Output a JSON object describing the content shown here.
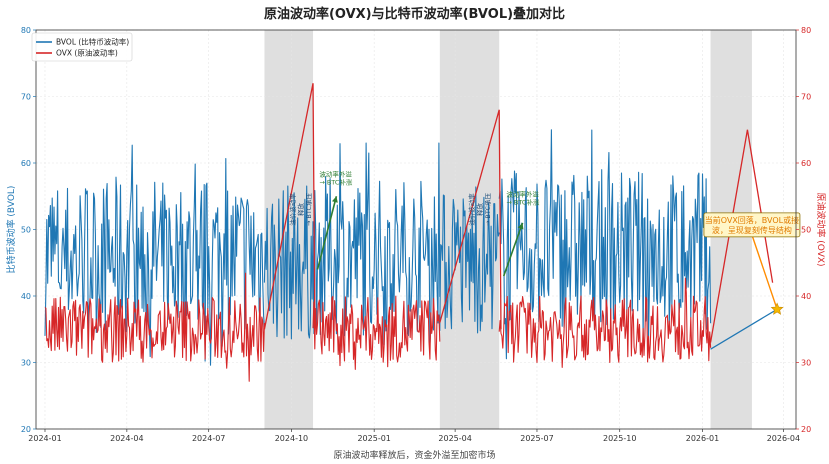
{
  "chart_data": {
    "type": "line",
    "title": "原油波动率(OVX)与比特币波动率(BVOL)叠加对比",
    "xlabel": "原油波动率释放后，资金外溢至加密市场",
    "ylabel_left": "比特币波动率 (BVOL)",
    "ylabel_right": "原油波动率 (OVX)",
    "x_ticks": [
      "2024-01",
      "2024-04",
      "2024-07",
      "2024-10",
      "2025-01",
      "2025-04",
      "2025-07",
      "2025-10",
      "2026-01",
      "2026-04"
    ],
    "x_range": [
      "2023-12-22",
      "2026-04-15"
    ],
    "ylim_left": [
      20,
      80
    ],
    "ylim_right": [
      20,
      80
    ],
    "y_ticks_left": [
      20,
      30,
      40,
      50,
      60,
      70,
      80
    ],
    "y_ticks_right": [
      20,
      30,
      40,
      50,
      60,
      70,
      80
    ],
    "grid": true,
    "legend_position": "top-left",
    "colors": {
      "bvol": "#1f77b4",
      "ovx": "#d62728",
      "shade": "#d9d9d9",
      "arrow": "#2e7d32",
      "callout": "#ff8c00",
      "star": "#f5b800"
    },
    "series": [
      {
        "name": "BVOL (比特币波动率)",
        "axis": "left",
        "color": "#1f77b4",
        "segments": [
          {
            "x_range": [
              "2024-01-01",
              "2024-09-01"
            ],
            "mean": 46,
            "amplitude": 12,
            "min": 28,
            "max": 65
          },
          {
            "x_range": [
              "2024-09-01",
              "2024-10-25"
            ],
            "mean": 45,
            "amplitude": 12,
            "min": 22,
            "max": 60
          },
          {
            "x_range": [
              "2024-10-25",
              "2025-03-15"
            ],
            "mean": 46,
            "amplitude": 12,
            "min": 30,
            "max": 63
          },
          {
            "x_range": [
              "2025-03-15",
              "2025-05-20"
            ],
            "mean": 45,
            "amplitude": 11,
            "min": 28,
            "max": 60
          },
          {
            "x_range": [
              "2025-05-20",
              "2026-01-10"
            ],
            "mean": 47,
            "amplitude": 12,
            "min": 23,
            "max": 65
          }
        ],
        "tail": [
          {
            "x": "2026-01-10",
            "y": 32
          },
          {
            "x": "2026-03-25",
            "y": 38
          }
        ]
      },
      {
        "name": "OVX (原油波动率)",
        "axis": "right",
        "color": "#d62728",
        "segments": [
          {
            "x_range": [
              "2024-01-01",
              "2024-09-01"
            ],
            "mean": 35,
            "amplitude": 5,
            "min": 22,
            "max": 44
          },
          {
            "x_range": [
              "2024-10-25",
              "2025-03-15"
            ],
            "mean": 35,
            "amplitude": 5,
            "min": 23,
            "max": 45
          },
          {
            "x_range": [
              "2025-05-20",
              "2026-01-10"
            ],
            "mean": 35,
            "amplitude": 5,
            "min": 21,
            "max": 45
          }
        ],
        "spikes": [
          {
            "x": [
              "2024-09-01",
              "2024-10-25",
              "2024-10-27"
            ],
            "y": [
              35,
              72,
              36
            ]
          },
          {
            "x": [
              "2025-03-15",
              "2025-05-20",
              "2025-05-22"
            ],
            "y": [
              36,
              68,
              35
            ]
          },
          {
            "x": [
              "2026-01-10",
              "2026-02-20",
              "2026-03-20"
            ],
            "y": [
              33,
              65,
              42
            ]
          }
        ]
      }
    ],
    "shaded_regions": [
      {
        "x_range": [
          "2024-09-01",
          "2024-10-25"
        ]
      },
      {
        "x_range": [
          "2025-03-15",
          "2025-05-20"
        ]
      },
      {
        "x_range": [
          "2026-01-10",
          "2026-02-25"
        ]
      }
    ],
    "annotations": [
      {
        "text_lines": [
          "油价波动率",
          "释放",
          "→ BTC承压"
        ],
        "rotated": true,
        "x": "2024-10-05",
        "y": 53
      },
      {
        "text_lines": [
          "波动率外溢",
          "→ BTC补涨"
        ],
        "x": "2024-11-01",
        "y": 58
      },
      {
        "text_lines": [
          "油价波动率",
          "释放",
          "→ BTC承压"
        ],
        "rotated": true,
        "x": "2025-04-22",
        "y": 53
      },
      {
        "text_lines": [
          "波动率外溢",
          "→ BTC补涨"
        ],
        "x": "2025-05-28",
        "y": 55
      }
    ],
    "arrows": [
      {
        "from": {
          "x": "2024-10-30",
          "y": 44
        },
        "to": {
          "x": "2024-11-20",
          "y": 55
        }
      },
      {
        "from": {
          "x": "2025-05-25",
          "y": 43
        },
        "to": {
          "x": "2025-06-15",
          "y": 51
        }
      }
    ],
    "callout": {
      "text_lines": [
        "当前OVX回落，BVOL或接",
        "波，呈现复刻传导结构"
      ],
      "box_anchor": {
        "x": "2026-02-25",
        "y": 51
      },
      "target": {
        "x": "2026-03-25",
        "y": 38
      }
    }
  }
}
